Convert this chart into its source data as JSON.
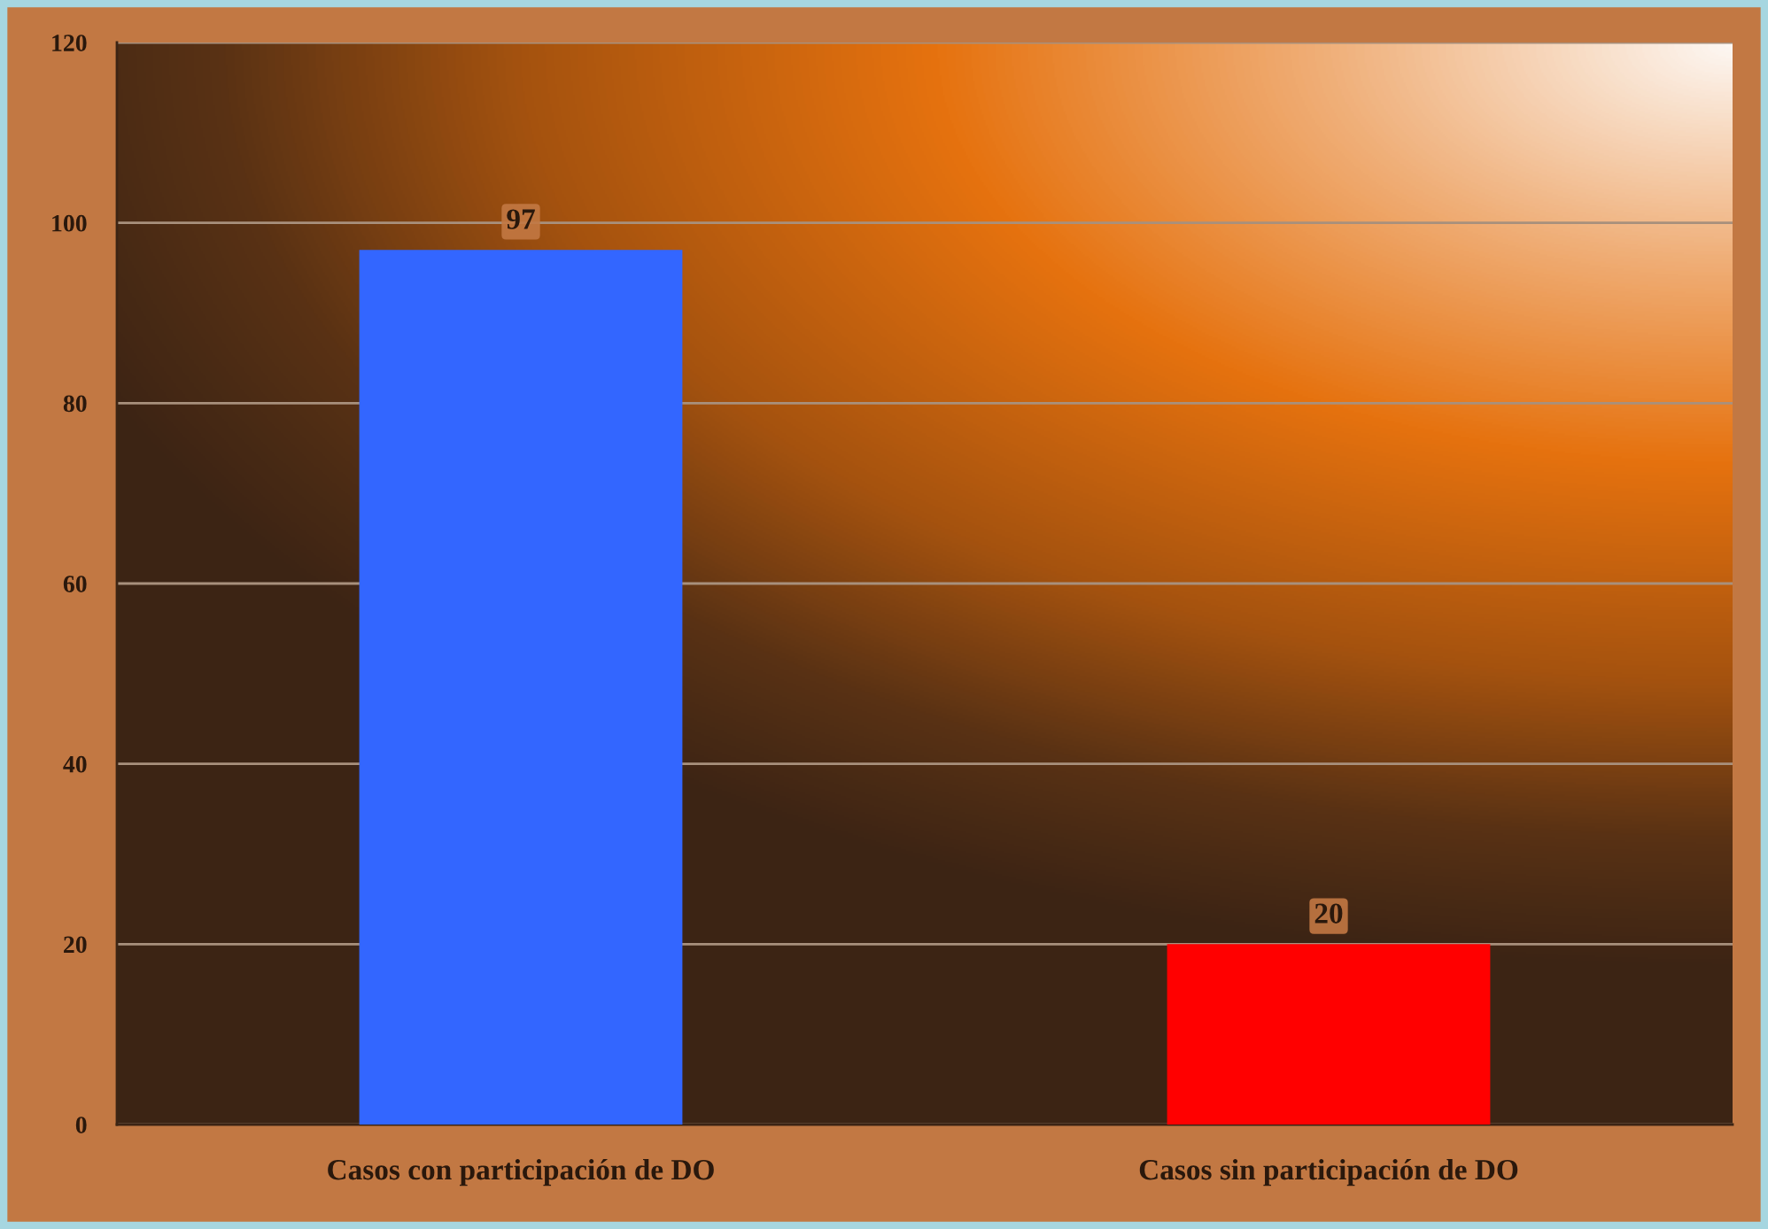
{
  "chart_data": {
    "type": "bar",
    "categories": [
      "Casos con participación de DO",
      "Casos sin participación de DO"
    ],
    "values": [
      97,
      20
    ],
    "colors": [
      "#3366ff",
      "#ff0000"
    ],
    "ylim": [
      0,
      120
    ],
    "yticks": [
      0,
      20,
      40,
      60,
      80,
      100,
      120
    ],
    "grid": "y",
    "data_labels": true
  }
}
